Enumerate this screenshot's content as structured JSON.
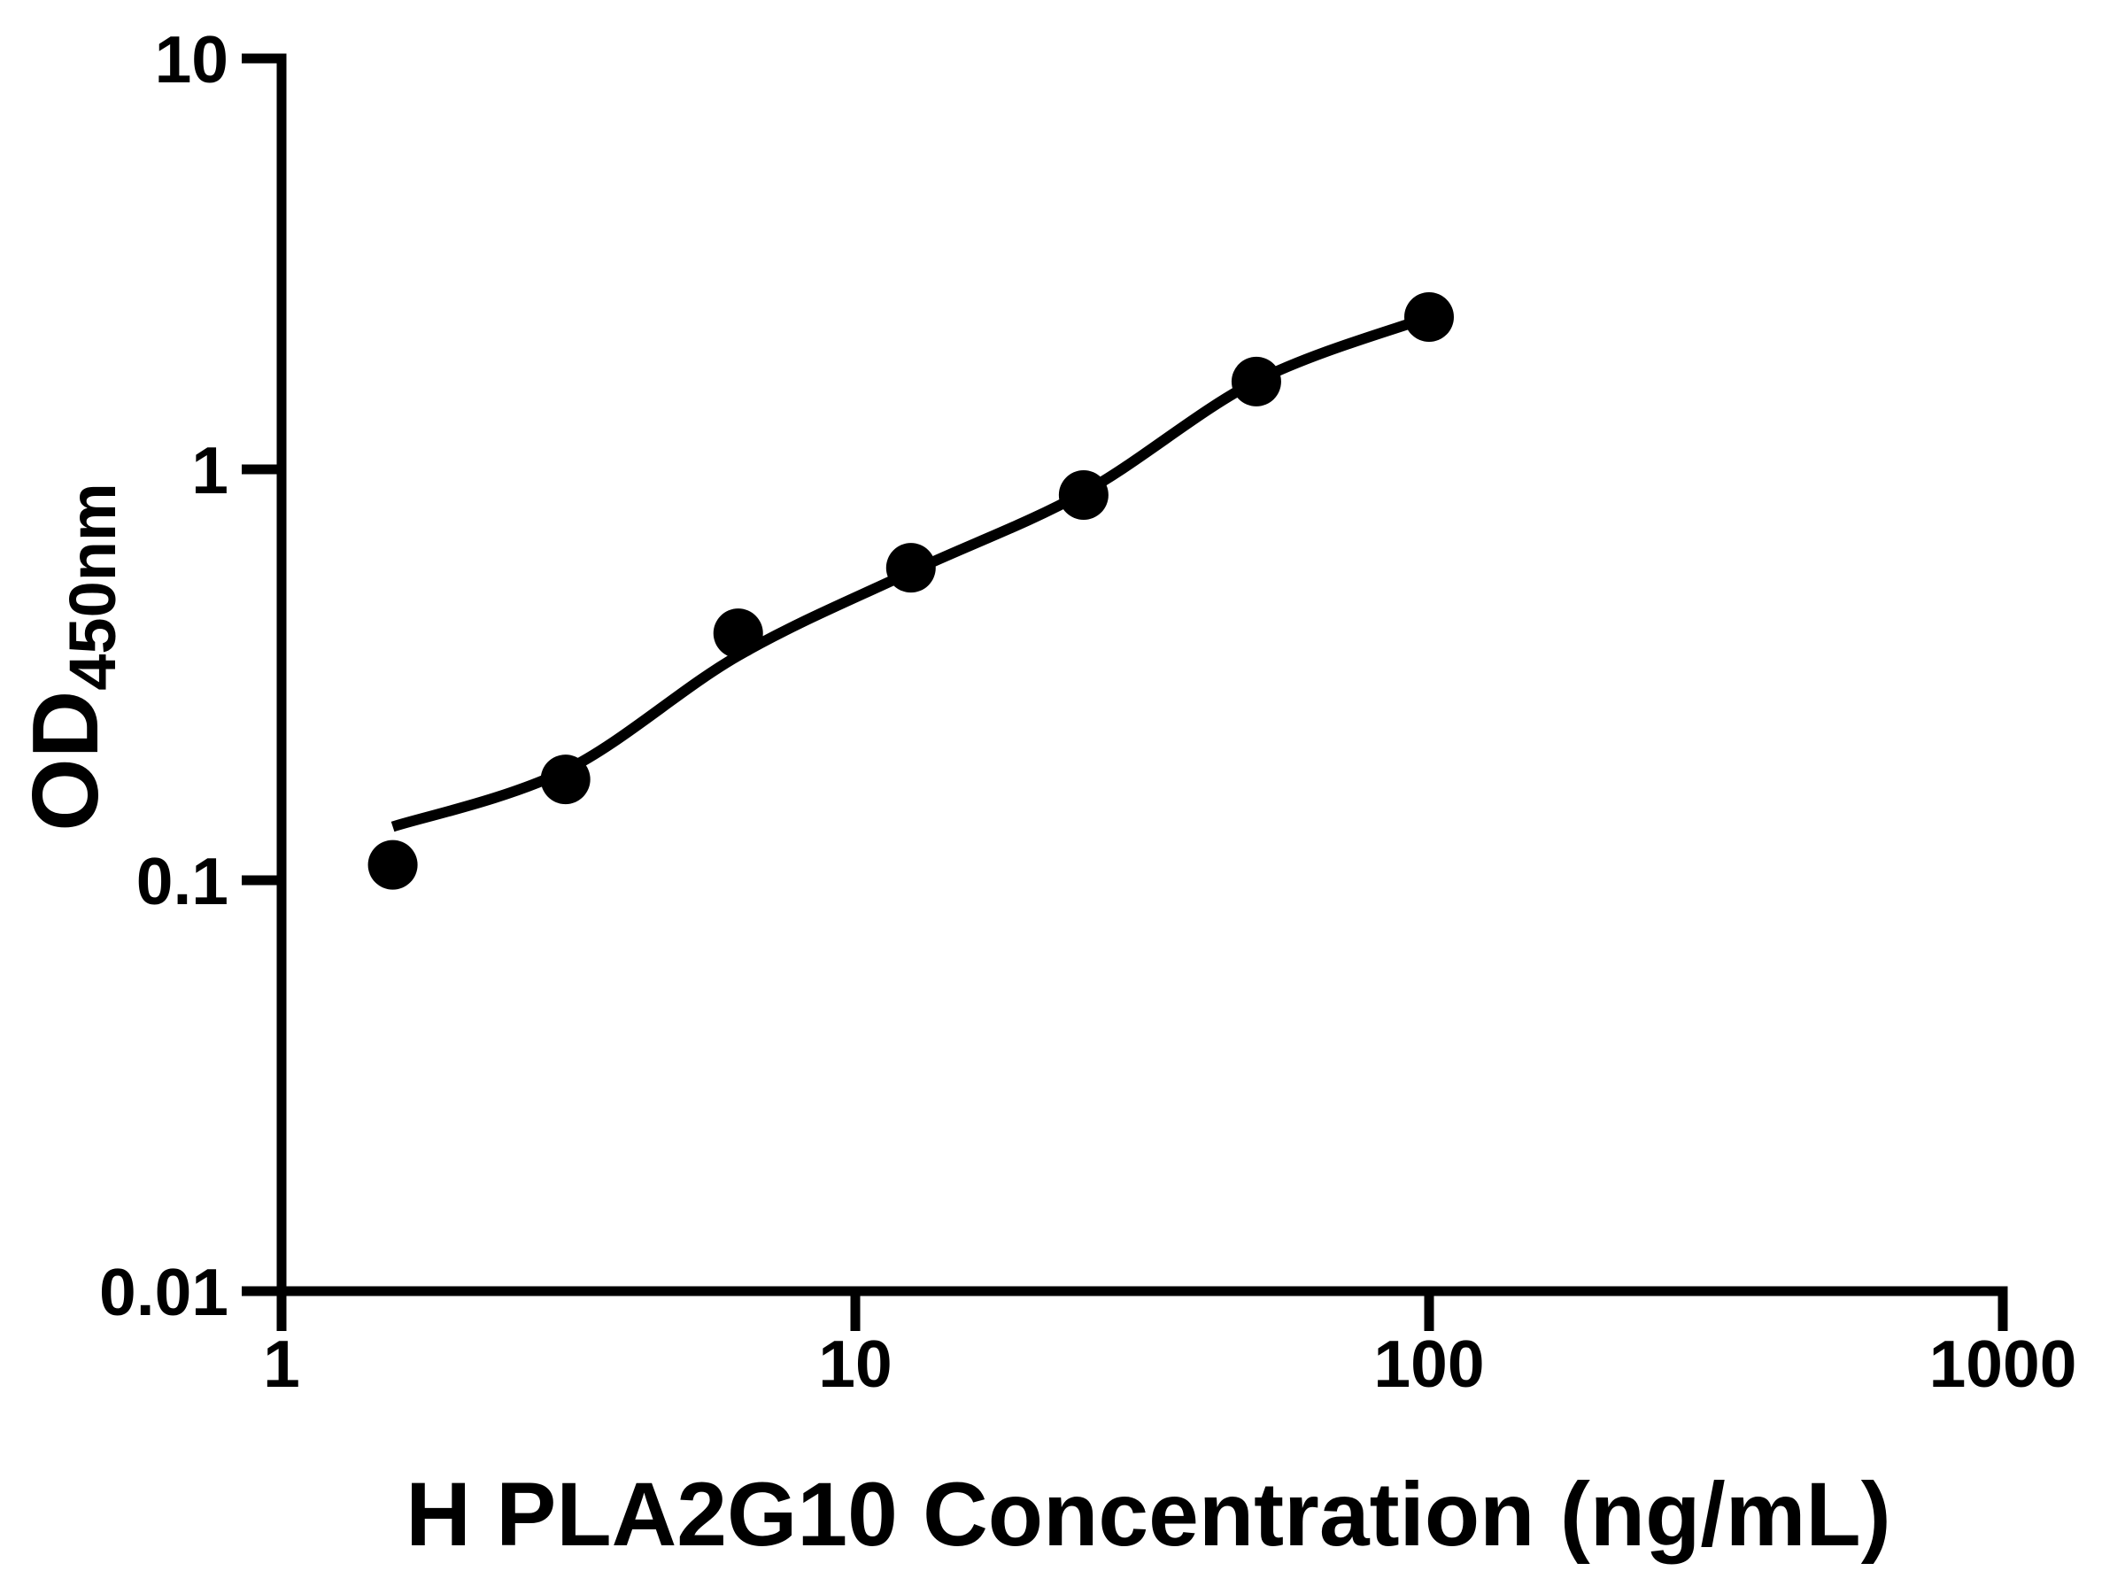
{
  "chart_data": {
    "type": "scatter",
    "title": "",
    "xlabel": "H PLA2G10 Concentration (ng/mL)",
    "ylabel": "OD450nm",
    "ylabel_main": "OD",
    "ylabel_sub": "450nm",
    "x_scale": "log",
    "y_scale": "log",
    "xlim": [
      1,
      1000
    ],
    "ylim": [
      0.01,
      10
    ],
    "x_tick_labels": [
      "1",
      "10",
      "100",
      "1000"
    ],
    "y_tick_labels": [
      "0.01",
      "0.1",
      "1",
      "10"
    ],
    "grid": false,
    "legend_position": "none",
    "marker_color": "#000000",
    "line_color": "#000000",
    "axis_color": "#000000",
    "series": [
      {
        "name": "standard-data-points",
        "type": "scatter",
        "marker": "filled-circle",
        "x": [
          1.5625,
          3.125,
          6.25,
          12.5,
          25,
          50,
          100
        ],
        "y": [
          0.109,
          0.176,
          0.399,
          0.576,
          0.866,
          1.635,
          2.348
        ]
      },
      {
        "name": "4pl-fit-curve",
        "type": "line",
        "x": [
          1.5625,
          3.125,
          6.25,
          12.5,
          25,
          50,
          100
        ],
        "y": [
          0.135,
          0.185,
          0.352,
          0.563,
          0.878,
          1.64,
          2.348
        ]
      }
    ]
  }
}
